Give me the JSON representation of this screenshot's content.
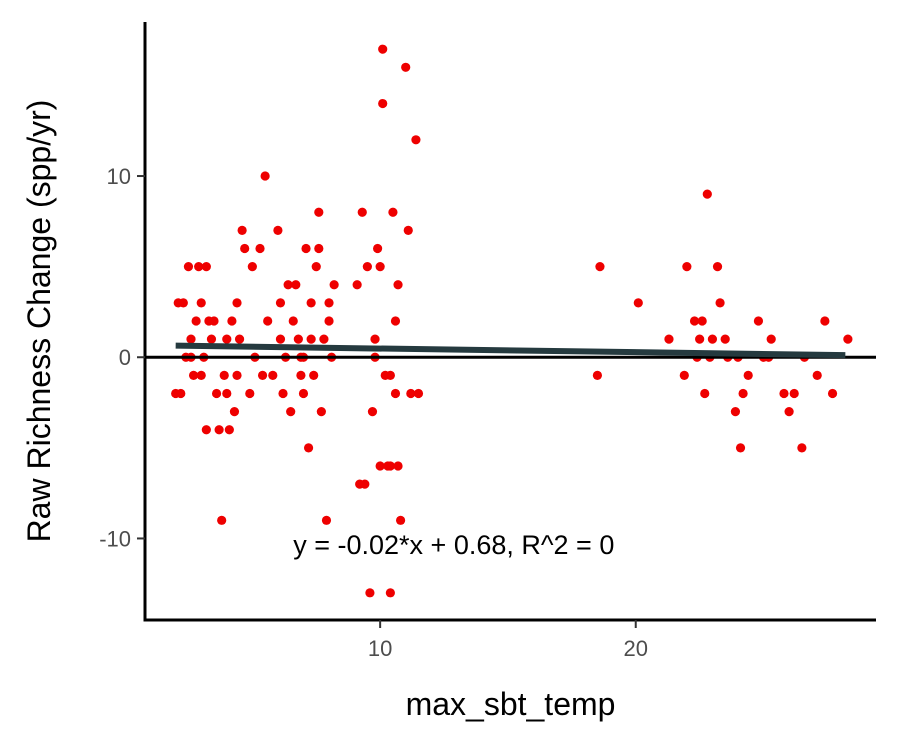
{
  "chart_data": {
    "type": "scatter",
    "title": "",
    "xlabel": "max_sbt_temp",
    "ylabel": "Raw Richness Change (spp/yr)",
    "xlim": [
      0.8,
      29.4
    ],
    "ylim": [
      -14.5,
      18.5
    ],
    "x_ticks": [
      10,
      20
    ],
    "y_ticks": [
      -10,
      0,
      10
    ],
    "x_tick_labels": [
      "10",
      "20"
    ],
    "y_tick_labels": [
      "-10",
      "0",
      "10"
    ],
    "grid": false,
    "legend": "none",
    "point_color": "#ee0000",
    "trend_color": "#253a3f",
    "zero_line_color": "#000000",
    "trend_line": {
      "slope": -0.02,
      "intercept": 0.68,
      "x_range": [
        2.0,
        28.2
      ]
    },
    "annotation": {
      "text": "y = -0.02*x + 0.68, R^2 = 0",
      "x": 6.6,
      "y": -10.3
    },
    "points": [
      [
        2.0,
        -2
      ],
      [
        2.2,
        -2
      ],
      [
        2.3,
        3
      ],
      [
        2.4,
        0
      ],
      [
        2.5,
        5
      ],
      [
        2.6,
        1
      ],
      [
        2.7,
        -1
      ],
      [
        2.8,
        2
      ],
      [
        2.9,
        5
      ],
      [
        3.0,
        3
      ],
      [
        3.1,
        0
      ],
      [
        3.2,
        -4
      ],
      [
        3.3,
        2
      ],
      [
        3.4,
        1
      ],
      [
        3.6,
        -2
      ],
      [
        3.7,
        -4
      ],
      [
        3.8,
        -9
      ],
      [
        3.9,
        -1
      ],
      [
        4.0,
        1
      ],
      [
        4.1,
        -4
      ],
      [
        4.2,
        2
      ],
      [
        4.3,
        -3
      ],
      [
        4.4,
        -1
      ],
      [
        4.5,
        1
      ],
      [
        4.6,
        7
      ],
      [
        4.7,
        6
      ],
      [
        4.9,
        -2
      ],
      [
        5.0,
        5
      ],
      [
        5.1,
        0
      ],
      [
        5.3,
        6
      ],
      [
        5.5,
        10
      ],
      [
        5.6,
        2
      ],
      [
        5.8,
        -1
      ],
      [
        6.0,
        7
      ],
      [
        6.1,
        1
      ],
      [
        6.2,
        -2
      ],
      [
        6.3,
        0
      ],
      [
        6.4,
        4
      ],
      [
        6.5,
        -3
      ],
      [
        6.6,
        2
      ],
      [
        6.7,
        4
      ],
      [
        6.8,
        1
      ],
      [
        6.9,
        -1
      ],
      [
        7.0,
        0
      ],
      [
        7.1,
        6
      ],
      [
        7.2,
        -5
      ],
      [
        7.3,
        3
      ],
      [
        7.4,
        -1
      ],
      [
        7.5,
        5
      ],
      [
        7.6,
        8
      ],
      [
        7.7,
        -3
      ],
      [
        7.8,
        1
      ],
      [
        7.9,
        -9
      ],
      [
        8.0,
        2
      ],
      [
        8.1,
        0
      ],
      [
        8.2,
        4
      ],
      [
        2.1,
        3
      ],
      [
        2.6,
        0
      ],
      [
        3.0,
        -1
      ],
      [
        3.5,
        2
      ],
      [
        4.0,
        -2
      ],
      [
        5.4,
        -1
      ],
      [
        6.1,
        3
      ],
      [
        7.0,
        -2
      ],
      [
        7.6,
        6
      ],
      [
        8.0,
        3
      ],
      [
        4.4,
        3
      ],
      [
        7.3,
        1
      ],
      [
        3.2,
        5
      ],
      [
        6.9,
        0
      ],
      [
        9.1,
        4
      ],
      [
        9.2,
        -7
      ],
      [
        9.3,
        8
      ],
      [
        9.4,
        -7
      ],
      [
        9.5,
        5
      ],
      [
        9.6,
        -13
      ],
      [
        9.7,
        -3
      ],
      [
        9.8,
        1
      ],
      [
        9.9,
        6
      ],
      [
        10.0,
        -6
      ],
      [
        10.1,
        14
      ],
      [
        10.1,
        17
      ],
      [
        10.2,
        -1
      ],
      [
        10.3,
        -6
      ],
      [
        10.4,
        -13
      ],
      [
        10.4,
        -1
      ],
      [
        10.5,
        8
      ],
      [
        10.6,
        2
      ],
      [
        10.7,
        -6
      ],
      [
        10.7,
        4
      ],
      [
        10.8,
        -9
      ],
      [
        11.0,
        16
      ],
      [
        11.1,
        7
      ],
      [
        11.2,
        -2
      ],
      [
        11.4,
        12
      ],
      [
        11.5,
        -2
      ],
      [
        10.0,
        5
      ],
      [
        10.4,
        -6
      ],
      [
        10.6,
        -2
      ],
      [
        9.8,
        0
      ],
      [
        18.5,
        -1
      ],
      [
        18.6,
        5
      ],
      [
        20.1,
        3
      ],
      [
        21.3,
        1
      ],
      [
        21.9,
        -1
      ],
      [
        22.0,
        5
      ],
      [
        22.3,
        2
      ],
      [
        22.4,
        0
      ],
      [
        22.5,
        1
      ],
      [
        22.6,
        2
      ],
      [
        22.7,
        -2
      ],
      [
        22.8,
        9
      ],
      [
        22.9,
        0
      ],
      [
        23.0,
        1
      ],
      [
        23.2,
        5
      ],
      [
        23.3,
        3
      ],
      [
        23.5,
        1
      ],
      [
        23.6,
        0
      ],
      [
        23.9,
        -3
      ],
      [
        24.0,
        0
      ],
      [
        24.1,
        -5
      ],
      [
        24.2,
        -2
      ],
      [
        24.4,
        -1
      ],
      [
        24.8,
        2
      ],
      [
        25.0,
        0
      ],
      [
        25.2,
        0
      ],
      [
        25.3,
        1
      ],
      [
        25.8,
        -2
      ],
      [
        26.0,
        -3
      ],
      [
        26.2,
        -2
      ],
      [
        26.5,
        -5
      ],
      [
        26.6,
        0
      ],
      [
        27.1,
        -1
      ],
      [
        27.4,
        2
      ],
      [
        27.7,
        -2
      ],
      [
        28.3,
        1
      ]
    ]
  }
}
